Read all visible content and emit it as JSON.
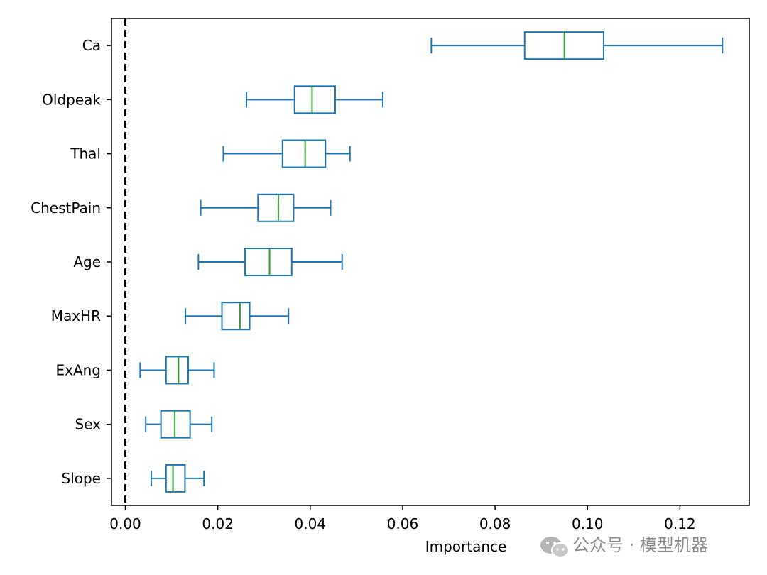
{
  "chart_data": {
    "type": "boxplot",
    "orientation": "horizontal",
    "xlabel": "Importance",
    "ylabel": "",
    "xlim": [
      -0.003,
      0.135
    ],
    "xticks": [
      0.0,
      0.02,
      0.04,
      0.06,
      0.08,
      0.1,
      0.12
    ],
    "xtick_labels": [
      "0.00",
      "0.02",
      "0.04",
      "0.06",
      "0.08",
      "0.10",
      "0.12"
    ],
    "reference_line": {
      "x": 0.0,
      "style": "dashed",
      "color": "#000000"
    },
    "colors": {
      "box": "#1f77b4",
      "median": "#2ca02c"
    },
    "features": [
      {
        "name": "Ca",
        "whisker_low": 0.0662,
        "q1": 0.0864,
        "median": 0.095,
        "q3": 0.1035,
        "whisker_high": 0.1292
      },
      {
        "name": "Oldpeak",
        "whisker_low": 0.0262,
        "q1": 0.0366,
        "median": 0.0404,
        "q3": 0.0454,
        "whisker_high": 0.0557
      },
      {
        "name": "Thal",
        "whisker_low": 0.0212,
        "q1": 0.034,
        "median": 0.0389,
        "q3": 0.0433,
        "whisker_high": 0.0486
      },
      {
        "name": "ChestPain",
        "whisker_low": 0.0163,
        "q1": 0.0287,
        "median": 0.0331,
        "q3": 0.0364,
        "whisker_high": 0.0444
      },
      {
        "name": "Age",
        "whisker_low": 0.0158,
        "q1": 0.0259,
        "median": 0.0312,
        "q3": 0.036,
        "whisker_high": 0.0469
      },
      {
        "name": "MaxHR",
        "whisker_low": 0.013,
        "q1": 0.0209,
        "median": 0.0248,
        "q3": 0.0269,
        "whisker_high": 0.0353
      },
      {
        "name": "ExAng",
        "whisker_low": 0.0032,
        "q1": 0.0088,
        "median": 0.0115,
        "q3": 0.0136,
        "whisker_high": 0.0192
      },
      {
        "name": "Sex",
        "whisker_low": 0.0044,
        "q1": 0.0077,
        "median": 0.0107,
        "q3": 0.014,
        "whisker_high": 0.0187
      },
      {
        "name": "Slope",
        "whisker_low": 0.0056,
        "q1": 0.0088,
        "median": 0.0103,
        "q3": 0.0129,
        "whisker_high": 0.017
      }
    ]
  },
  "watermark": {
    "text": "公众号 · 模型机器",
    "icon": "wechat-icon"
  }
}
